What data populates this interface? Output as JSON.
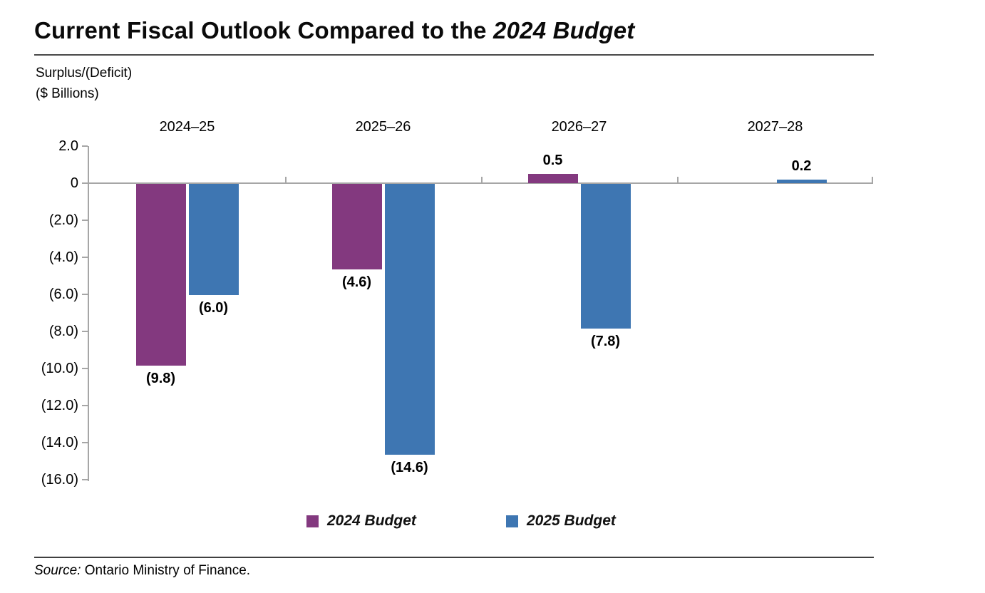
{
  "title": {
    "regular": "Current Fiscal Outlook Compared to the ",
    "italic": "2024 Budget"
  },
  "axis_note": {
    "line1": "Surplus/(Deficit)",
    "line2": "($ Billions)"
  },
  "chart_data": {
    "type": "bar",
    "title": "Current Fiscal Outlook Compared to the 2024 Budget",
    "ylabel": "Surplus/(Deficit) ($ Billions)",
    "categories": [
      "2024–25",
      "2025–26",
      "2026–27",
      "2027–28"
    ],
    "series": [
      {
        "name": "2024 Budget",
        "color": "#83397F",
        "values": [
          -9.8,
          -4.6,
          0.5,
          null
        ],
        "labels": [
          "(9.8)",
          "(4.6)",
          "0.5",
          ""
        ]
      },
      {
        "name": "2025 Budget",
        "color": "#3E76B2",
        "values": [
          -6.0,
          -14.6,
          -7.8,
          0.2
        ],
        "labels": [
          "(6.0)",
          "(14.6)",
          "(7.8)",
          "0.2"
        ]
      }
    ],
    "ylim": [
      -16,
      2
    ],
    "ytick_step": 2,
    "ytick_labels": [
      "2.0",
      "0",
      "(2.0)",
      "(4.0)",
      "(6.0)",
      "(8.0)",
      "(10.0)",
      "(12.0)",
      "(14.0)",
      "(16.0)"
    ],
    "grid": false,
    "axis_color": "#A6A6A6",
    "legend_position": "bottom"
  },
  "legend": {
    "items": [
      {
        "label": "2024 Budget",
        "color": "#83397F"
      },
      {
        "label": "2025 Budget",
        "color": "#3E76B2"
      }
    ]
  },
  "source": {
    "prefix": "Source:",
    "text": " Ontario Ministry of Finance."
  }
}
